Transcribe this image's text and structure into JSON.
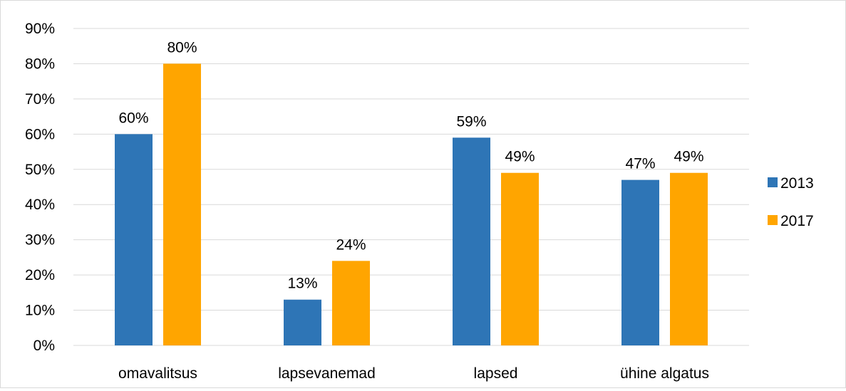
{
  "chart_data": {
    "type": "bar",
    "title": "",
    "xlabel": "",
    "ylabel": "",
    "categories": [
      "omavalitsus",
      "lapsevanemad",
      "lapsed",
      "ühine algatus"
    ],
    "series": [
      {
        "name": "2013",
        "color": "#2e75b6",
        "values": [
          60,
          13,
          59,
          47
        ]
      },
      {
        "name": "2017",
        "color": "#ffa500",
        "values": [
          80,
          24,
          49,
          49
        ]
      }
    ],
    "ylim": [
      0,
      90
    ],
    "y_ticks": [
      0,
      10,
      20,
      30,
      40,
      50,
      60,
      70,
      80,
      90
    ],
    "y_tick_suffix": "%",
    "data_label_suffix": "%",
    "grid": true,
    "legend_position": "right"
  }
}
